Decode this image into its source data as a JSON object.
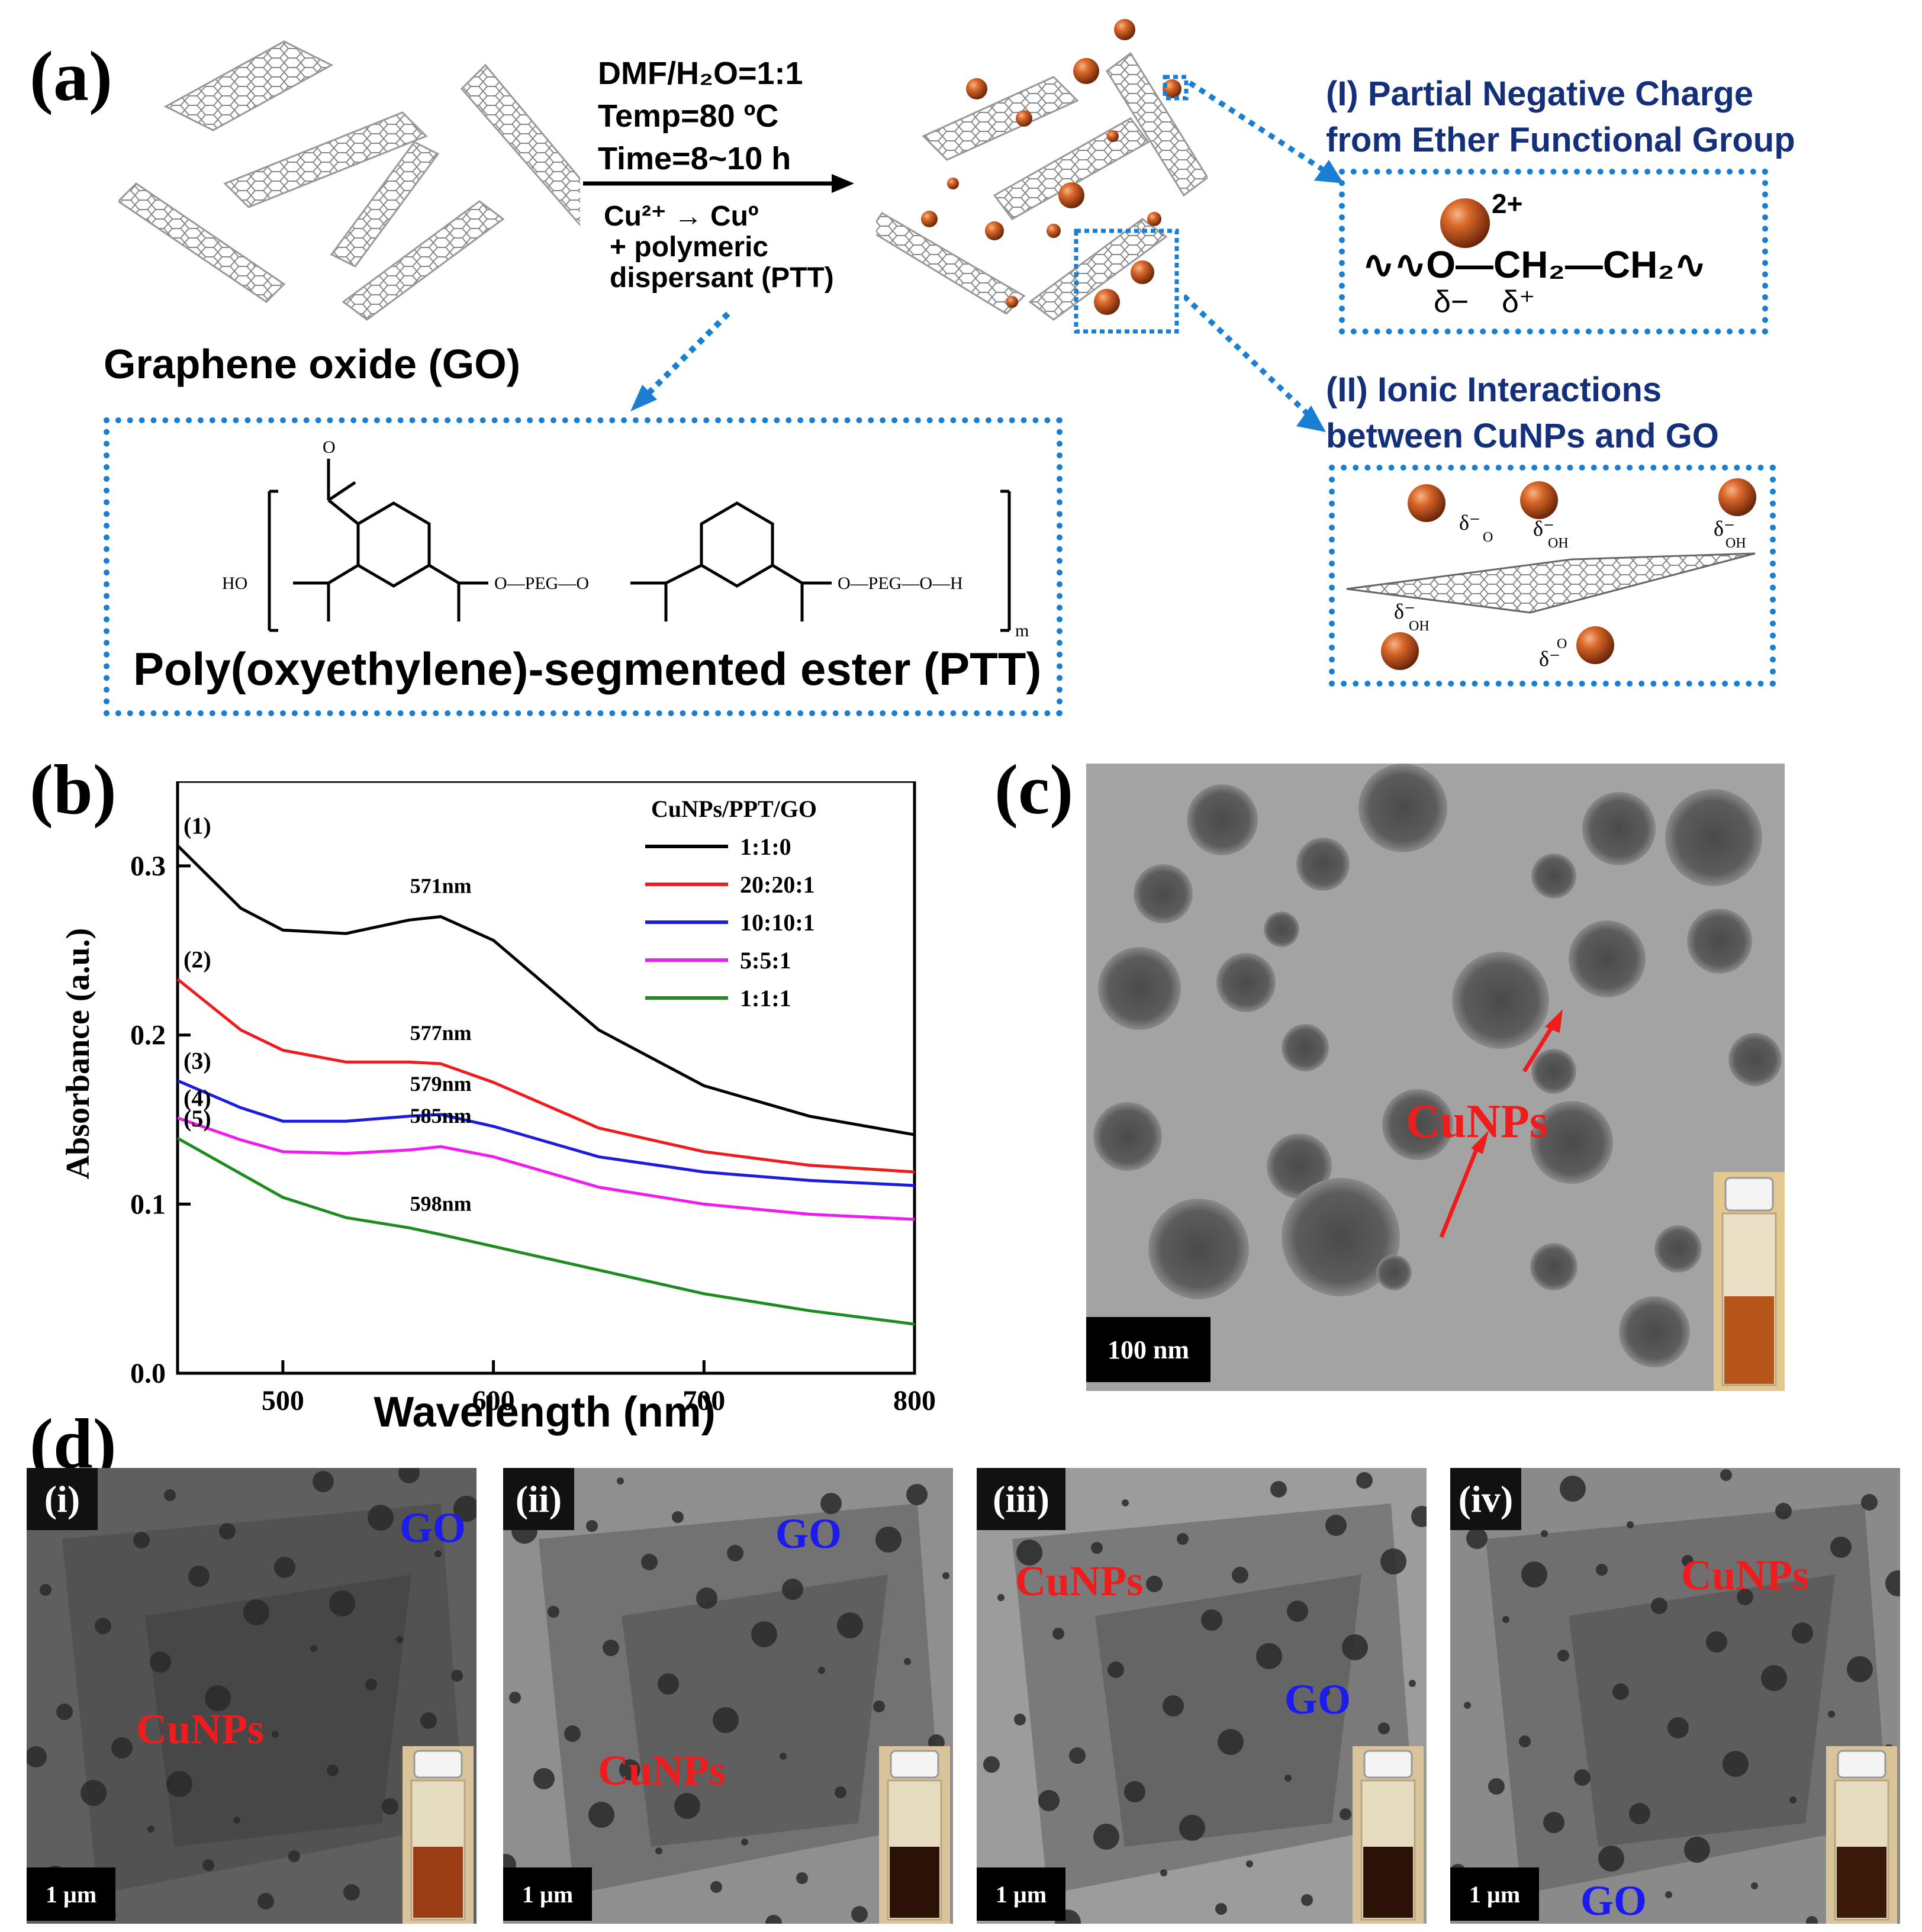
{
  "panel_a": {
    "label": "(a)",
    "conditions": [
      "DMF/H₂O=1:1",
      "Temp=80 ºC",
      "Time=8~10 h"
    ],
    "reaction_1": "Cu²⁺ → Cuº",
    "reaction_2": "+ polymeric",
    "reaction_3": "dispersant (PTT)",
    "go_label": "Graphene oxide (GO)",
    "ptt_name": "Poly(oxyethylene)-segmented ester (PTT)",
    "ptt_struct": {
      "ho": "HO",
      "peg1": "O—PEG—O",
      "peg2": "O—PEG—O—H",
      "o": "O",
      "m": "m"
    },
    "box1_title_1": "(I) Partial Negative Charge",
    "box1_title_2": "from Ether Functional Group",
    "box1_charge": "2+",
    "box1_formula": "∿∿O—CH₂—CH₂∿",
    "box1_delta_minus": "δ−",
    "box1_delta_plus": "δ⁺",
    "box2_title_1": "(II) Ionic Interactions",
    "box2_title_2": "between CuNPs and GO",
    "box2_labels": [
      "δ⁻",
      "δ⁻",
      "δ⁻",
      "δ⁻",
      "δ⁻",
      "OH",
      "OH",
      "OH",
      "O",
      "O"
    ]
  },
  "panel_b": {
    "label": "(b)"
  },
  "chart_data": {
    "type": "line",
    "xlabel": "Wavelength (nm)",
    "ylabel": "Absorbance (a.u.)",
    "xlim": [
      450,
      800
    ],
    "ylim": [
      0.0,
      0.35
    ],
    "xticks": [
      "500",
      "600",
      "700",
      "800"
    ],
    "yticks": [
      "0.0",
      "0.1",
      "0.2",
      "0.3"
    ],
    "legend_title": "CuNPs/PPT/GO",
    "legend_position": "top-right",
    "x": [
      450,
      480,
      500,
      530,
      560,
      575,
      600,
      650,
      700,
      750,
      800
    ],
    "series": [
      {
        "name": "1:1:0",
        "tag": "(1)",
        "color": "#000000",
        "peak_label": "571nm",
        "values": [
          0.312,
          0.275,
          0.262,
          0.26,
          0.268,
          0.27,
          0.256,
          0.203,
          0.17,
          0.152,
          0.141
        ]
      },
      {
        "name": "20:20:1",
        "tag": "(2)",
        "color": "#ee1c1c",
        "peak_label": "577nm",
        "values": [
          0.233,
          0.203,
          0.191,
          0.184,
          0.184,
          0.183,
          0.172,
          0.145,
          0.131,
          0.123,
          0.119
        ]
      },
      {
        "name": "10:10:1",
        "tag": "(3)",
        "color": "#1c1ce0",
        "peak_label": "579nm",
        "values": [
          0.173,
          0.157,
          0.149,
          0.149,
          0.152,
          0.153,
          0.146,
          0.128,
          0.119,
          0.114,
          0.111
        ]
      },
      {
        "name": "5:5:1",
        "tag": "(4)",
        "color": "#ee1cee",
        "peak_label": "585nm",
        "values": [
          0.151,
          0.138,
          0.131,
          0.13,
          0.132,
          0.134,
          0.128,
          0.11,
          0.1,
          0.094,
          0.091
        ]
      },
      {
        "name": "1:1:1",
        "tag": "(5)",
        "color": "#1e8c1e",
        "peak_label": "598nm",
        "values": [
          0.139,
          0.118,
          0.104,
          0.092,
          0.086,
          0.082,
          0.075,
          0.061,
          0.047,
          0.037,
          0.029
        ]
      }
    ]
  },
  "panel_c": {
    "label": "(c)",
    "cunps": "CuNPs",
    "scale": "100 nm"
  },
  "panel_d": {
    "label": "(d)",
    "images": [
      {
        "tag": "(i)",
        "scale": "1 µm",
        "cunps": "CuNPs",
        "go": "GO"
      },
      {
        "tag": "(ii)",
        "scale": "1 µm",
        "cunps": "CuNPs",
        "go": "GO"
      },
      {
        "tag": "(iii)",
        "scale": "1 µm",
        "cunps": "CuNPs",
        "go": "GO"
      },
      {
        "tag": "(iv)",
        "scale": "1 µm",
        "cunps": "CuNPs",
        "go": "GO"
      }
    ]
  },
  "colors": {
    "accent_blue": "#1a7fd0",
    "navy": "#14307a",
    "copper": "#b84a14",
    "arrow_red": "#ee1c1c"
  }
}
